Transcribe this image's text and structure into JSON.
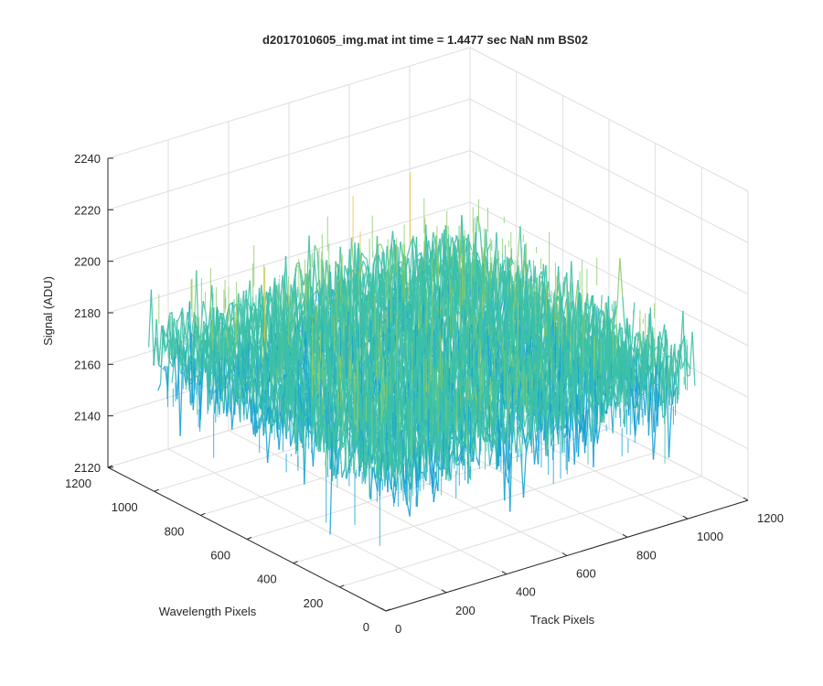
{
  "figure": {
    "title": "d2017010605_img.mat int time = 1.4477 sec  NaN nm BS02"
  },
  "chart_data": {
    "type": "surface",
    "title": "d2017010605_img.mat int time = 1.4477 sec  NaN nm BS02",
    "xlabel": "Track Pixels",
    "ylabel": "Wavelength Pixels",
    "zlabel": "Signal (ADU)",
    "xlim": [
      0,
      1200
    ],
    "ylim": [
      0,
      1200
    ],
    "zlim": [
      2120,
      2240
    ],
    "xticks": [
      0,
      200,
      400,
      600,
      800,
      1000,
      1200
    ],
    "yticks": [
      0,
      200,
      400,
      600,
      800,
      1000,
      1200
    ],
    "zticks": [
      2120,
      2140,
      2160,
      2180,
      2200,
      2220,
      2240
    ],
    "xtick_labels": [
      "0",
      "200",
      "400",
      "600",
      "800",
      "1000",
      "1200"
    ],
    "ytick_labels": [
      "0",
      "200",
      "400",
      "600",
      "800",
      "1000",
      "1200"
    ],
    "ztick_labels": [
      "2120",
      "2140",
      "2160",
      "2180",
      "2200",
      "2220",
      "2240"
    ],
    "surface_extent": {
      "x": [
        0,
        1024
      ],
      "y": [
        0,
        1024
      ]
    },
    "signal_mean": 2175,
    "signal_range": [
      2130,
      2230
    ],
    "grid": true,
    "colormap": [
      "#0f78c8",
      "#15a0d6",
      "#3cc0a8",
      "#8ccb6a",
      "#e6c23a"
    ]
  }
}
